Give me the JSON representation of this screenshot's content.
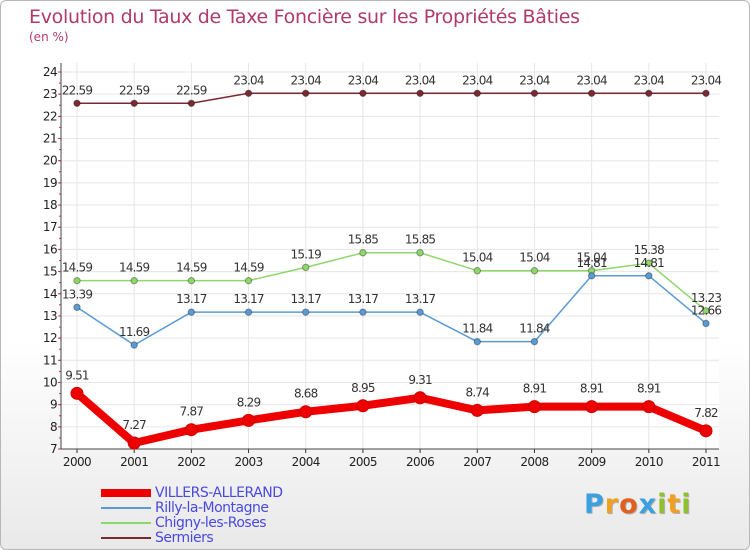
{
  "chart_data": {
    "type": "line",
    "title": "Evolution du Taux de Taxe Foncière sur les Propriétés Bâties",
    "subtitle": "(en %)",
    "x": [
      "2000",
      "2001",
      "2002",
      "2003",
      "2004",
      "2005",
      "2006",
      "2007",
      "2008",
      "2009",
      "2010",
      "2011"
    ],
    "yticks": [
      "7",
      "8",
      "9",
      "10",
      "11",
      "12",
      "13",
      "14",
      "15",
      "16",
      "17",
      "18",
      "19",
      "20",
      "21",
      "22",
      "23",
      "24"
    ],
    "ylim": [
      7,
      24
    ],
    "grid": true,
    "legend_position": "bottom-left",
    "series": [
      {
        "name": "VILLERS-ALLERAND",
        "color": "#ee0000",
        "width": 8,
        "labels": [
          "9.51",
          "7.27",
          "7.87",
          "8.29",
          "8.68",
          "8.95",
          "9.31",
          "8.74",
          "8.91",
          "8.91",
          "8.91",
          "7.82"
        ],
        "values": [
          9.51,
          7.27,
          7.87,
          8.29,
          8.68,
          8.95,
          9.31,
          8.74,
          8.91,
          8.91,
          8.91,
          7.82
        ]
      },
      {
        "name": "Rilly-la-Montagne",
        "color": "#5b9bd5",
        "width": 1.5,
        "labels": [
          "13.39",
          "11.69",
          "13.17",
          "13.17",
          "13.17",
          "13.17",
          "13.17",
          "11.84",
          "11.84",
          "14.81",
          "14.81",
          "12.66"
        ],
        "values": [
          13.39,
          11.69,
          13.17,
          13.17,
          13.17,
          13.17,
          13.17,
          11.84,
          11.84,
          14.81,
          14.81,
          12.66
        ]
      },
      {
        "name": "Chigny-les-Roses",
        "color": "#8fd66b",
        "width": 1.5,
        "labels": [
          "14.59",
          "14.59",
          "14.59",
          "14.59",
          "15.19",
          "15.85",
          "15.85",
          "15.04",
          "15.04",
          "15.04",
          "15.38",
          "13.23"
        ],
        "values": [
          14.59,
          14.59,
          14.59,
          14.59,
          15.19,
          15.85,
          15.85,
          15.04,
          15.04,
          15.04,
          15.38,
          13.23
        ]
      },
      {
        "name": "Sermiers",
        "color": "#7a2a32",
        "width": 1.5,
        "labels": [
          "22.59",
          "22.59",
          "22.59",
          "23.04",
          "23.04",
          "23.04",
          "23.04",
          "23.04",
          "23.04",
          "23.04",
          "23.04",
          "23.04"
        ],
        "values": [
          22.59,
          22.59,
          22.59,
          23.04,
          23.04,
          23.04,
          23.04,
          23.04,
          23.04,
          23.04,
          23.04,
          23.04
        ]
      }
    ]
  },
  "logo": {
    "text": "Proxiti",
    "letters": [
      {
        "ch": "P",
        "color": "#3aa0e0"
      },
      {
        "ch": "r",
        "color": "#f0a020"
      },
      {
        "ch": "o",
        "color": "#e06020"
      },
      {
        "ch": "x",
        "color": "#3aa0e0"
      },
      {
        "ch": "i",
        "color": "#90c030"
      },
      {
        "ch": "t",
        "color": "#f0a020"
      },
      {
        "ch": "i",
        "color": "#90c030"
      }
    ]
  }
}
